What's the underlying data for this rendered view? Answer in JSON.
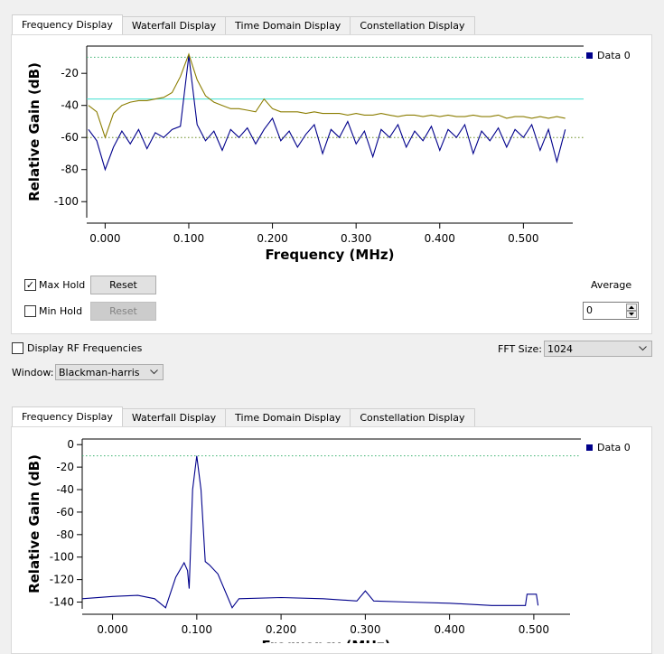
{
  "panels": [
    {
      "tabs": [
        "Frequency Display",
        "Waterfall Display",
        "Time Domain Display",
        "Constellation Display"
      ]
    },
    {
      "tabs": [
        "Frequency Display",
        "Waterfall Display",
        "Time Domain Display",
        "Constellation Display"
      ]
    }
  ],
  "controls": {
    "max_hold": {
      "label": "Max Hold",
      "checked": true
    },
    "max_reset": "Reset",
    "min_hold": {
      "label": "Min Hold",
      "checked": false
    },
    "min_reset": "Reset",
    "average": {
      "label": "Average",
      "value": 0
    },
    "display_rf": {
      "label": "Display RF Frequencies",
      "checked": false
    },
    "fft_size": {
      "label": "FFT Size:",
      "value": "1024"
    },
    "window": {
      "label": "Window:",
      "value": "Blackman-harris"
    }
  },
  "chart_data": [
    {
      "type": "line",
      "x_label": "Frequency (MHz)",
      "y_label": "Relative Gain (dB)",
      "xlim": [
        -0.022,
        0.559
      ],
      "ylim": [
        -110,
        -3
      ],
      "xticks": [
        {
          "value": 0,
          "label": "0.000"
        },
        {
          "value": 0.1,
          "label": "0.100"
        },
        {
          "value": 0.2,
          "label": "0.200"
        },
        {
          "value": 0.3,
          "label": "0.300"
        },
        {
          "value": 0.4,
          "label": "0.400"
        },
        {
          "value": 0.5,
          "label": "0.500"
        }
      ],
      "yticks": [
        -100,
        -80,
        -60,
        -40,
        -20
      ],
      "hlines": [
        {
          "value": -10,
          "color": "#3cb371",
          "style": "dotted"
        },
        {
          "value": -60,
          "color": "#6b8e23",
          "style": "dotted"
        },
        {
          "value": -36,
          "color": "#40e0d0",
          "style": "solid"
        }
      ],
      "x": [
        -0.02,
        -0.01,
        0,
        0.01,
        0.02,
        0.03,
        0.04,
        0.05,
        0.06,
        0.07,
        0.08,
        0.09,
        0.1,
        0.11,
        0.12,
        0.13,
        0.14,
        0.15,
        0.16,
        0.17,
        0.18,
        0.19,
        0.2,
        0.21,
        0.22,
        0.23,
        0.24,
        0.25,
        0.26,
        0.27,
        0.28,
        0.29,
        0.3,
        0.31,
        0.32,
        0.33,
        0.34,
        0.35,
        0.36,
        0.37,
        0.38,
        0.39,
        0.4,
        0.41,
        0.42,
        0.43,
        0.44,
        0.45,
        0.46,
        0.47,
        0.48,
        0.49,
        0.5,
        0.51,
        0.52,
        0.53,
        0.54,
        0.55
      ],
      "series": [
        {
          "name": "Data 0",
          "color": "#00008b",
          "values": [
            -55,
            -62,
            -80,
            -66,
            -56,
            -64,
            -55,
            -67,
            -57,
            -60,
            -55,
            -53,
            -9,
            -52,
            -62,
            -56,
            -68,
            -55,
            -60,
            -54,
            -64,
            -55,
            -48,
            -62,
            -56,
            -66,
            -58,
            -52,
            -70,
            -55,
            -60,
            -50,
            -64,
            -56,
            -72,
            -55,
            -60,
            -52,
            -66,
            -56,
            -62,
            -53,
            -68,
            -55,
            -60,
            -52,
            -70,
            -56,
            -62,
            -54,
            -66,
            -55,
            -60,
            -52,
            -68,
            -55,
            -75,
            -55
          ]
        },
        {
          "color": "#8b7d00",
          "values": [
            -40,
            -44,
            -60,
            -45,
            -40,
            -38,
            -37,
            -37,
            -36,
            -35,
            -32,
            -22,
            -8,
            -24,
            -34,
            -38,
            -40,
            -42,
            -42,
            -43,
            -44,
            -36,
            -42,
            -44,
            -44,
            -44,
            -45,
            -44,
            -45,
            -45,
            -45,
            -46,
            -45,
            -46,
            -46,
            -45,
            -46,
            -47,
            -46,
            -46,
            -47,
            -46,
            -47,
            -46,
            -47,
            -47,
            -46,
            -47,
            -47,
            -46,
            -48,
            -47,
            -47,
            -48,
            -47,
            -48,
            -47,
            -48
          ]
        }
      ]
    },
    {
      "type": "line",
      "x_label": "Frequency (MHz)",
      "y_label": "Relative Gain (dB)",
      "xlim": [
        -0.036,
        0.543
      ],
      "ylim": [
        -146,
        5
      ],
      "xticks": [
        {
          "value": 0,
          "label": "0.000"
        },
        {
          "value": 0.1,
          "label": "0.100"
        },
        {
          "value": 0.2,
          "label": "0.200"
        },
        {
          "value": 0.3,
          "label": "0.300"
        },
        {
          "value": 0.4,
          "label": "0.400"
        },
        {
          "value": 0.5,
          "label": "0.500"
        }
      ],
      "yticks": [
        -140,
        -120,
        -100,
        -80,
        -60,
        -40,
        -20,
        0
      ],
      "hlines": [
        {
          "value": -10,
          "color": "#3cb371",
          "style": "dotted"
        }
      ],
      "x": [
        -0.036,
        0,
        0.03,
        0.05,
        0.063,
        0.075,
        0.085,
        0.089,
        0.091,
        0.095,
        0.1,
        0.105,
        0.11,
        0.115,
        0.125,
        0.142,
        0.15,
        0.2,
        0.25,
        0.29,
        0.3,
        0.31,
        0.35,
        0.4,
        0.45,
        0.49,
        0.492,
        0.503,
        0.505
      ],
      "series": [
        {
          "name": "Data 0",
          "color": "#00008b",
          "values": [
            -137,
            -135,
            -134,
            -137,
            -145,
            -118,
            -105,
            -112,
            -128,
            -40,
            -10,
            -40,
            -104,
            -107,
            -115,
            -145,
            -137,
            -136,
            -137,
            -139,
            -130,
            -139,
            -140,
            -141,
            -143,
            -143,
            -133,
            -133,
            -143
          ]
        }
      ]
    }
  ]
}
